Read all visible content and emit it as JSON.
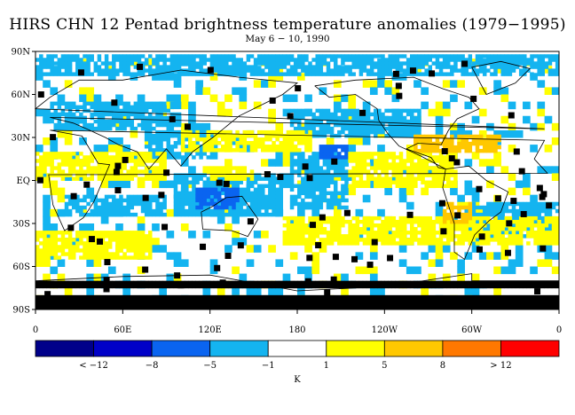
{
  "title": "HIRS CHN 12 Pentad brightness temperature anomalies (1979−1995)",
  "subtitle": "May 6 − 10, 1990",
  "chart_data": {
    "type": "heatmap",
    "title": "HIRS CHN 12 Pentad brightness temperature anomalies (1979−1995)",
    "subtitle": "May 6 − 10, 1990",
    "x_ticks": [
      "0",
      "60E",
      "120E",
      "180",
      "120W",
      "60W",
      "0"
    ],
    "x_tick_values": [
      0,
      60,
      120,
      180,
      240,
      300,
      360
    ],
    "y_ticks": [
      "90N",
      "60N",
      "30N",
      "EQ",
      "30S",
      "60S",
      "90S"
    ],
    "y_tick_values": [
      90,
      60,
      30,
      0,
      -30,
      -60,
      -90
    ],
    "xlim": [
      0,
      360
    ],
    "ylim": [
      -90,
      90
    ],
    "colorbar": {
      "unit": "K",
      "labels": [
        "< −12",
        "−8",
        "−5",
        "−1",
        "1",
        "5",
        "8",
        "> 12"
      ],
      "colors": [
        "#00008a",
        "#0000c8",
        "#0a64f0",
        "#14b4f0",
        "#ffffff",
        "#ffff00",
        "#ffc800",
        "#ff7800",
        "#ff0000"
      ],
      "missing_color": "#000000"
    },
    "anomaly_regions": [
      {
        "lon": [
          20,
          90
        ],
        "lat": [
          -25,
          -10
        ],
        "category": "cold"
      },
      {
        "lon": [
          95,
          170
        ],
        "lat": [
          -25,
          5
        ],
        "category": "cold"
      },
      {
        "lon": [
          75,
          120
        ],
        "lat": [
          15,
          35
        ],
        "category": "cold"
      },
      {
        "lon": [
          175,
          215
        ],
        "lat": [
          -20,
          20
        ],
        "category": "cold"
      },
      {
        "lon": [
          10,
          100
        ],
        "lat": [
          35,
          55
        ],
        "category": "cold"
      },
      {
        "lon": [
          175,
          265
        ],
        "lat": [
          30,
          50
        ],
        "category": "cold"
      },
      {
        "lon": [
          300,
          360
        ],
        "lat": [
          -40,
          -15
        ],
        "category": "cold"
      },
      {
        "lon": [
          0,
          360
        ],
        "lat": [
          75,
          88
        ],
        "category": "cold"
      },
      {
        "lon": [
          195,
          215
        ],
        "lat": [
          15,
          25
        ],
        "category": "very_cold"
      },
      {
        "lon": [
          110,
          140
        ],
        "lat": [
          -20,
          -5
        ],
        "category": "very_cold"
      },
      {
        "lon": [
          215,
          290
        ],
        "lat": [
          -5,
          20
        ],
        "category": "warm"
      },
      {
        "lon": [
          260,
          320
        ],
        "lat": [
          20,
          32
        ],
        "category": "moderately_warm"
      },
      {
        "lon": [
          0,
          90
        ],
        "lat": [
          0,
          20
        ],
        "category": "warm"
      },
      {
        "lon": [
          100,
          190
        ],
        "lat": [
          20,
          35
        ],
        "category": "warm"
      },
      {
        "lon": [
          170,
          360
        ],
        "lat": [
          -45,
          -25
        ],
        "category": "warm"
      },
      {
        "lon": [
          280,
          300
        ],
        "lat": [
          -30,
          -15
        ],
        "category": "moderately_warm"
      },
      {
        "lon": [
          0,
          80
        ],
        "lat": [
          -55,
          -35
        ],
        "category": "warm"
      },
      {
        "lon": [
          120,
          150
        ],
        "lat": [
          0,
          10
        ],
        "category": "warm"
      },
      {
        "lon": [
          0,
          360
        ],
        "lat": [
          -75,
          -70
        ],
        "category": "missing"
      }
    ]
  }
}
